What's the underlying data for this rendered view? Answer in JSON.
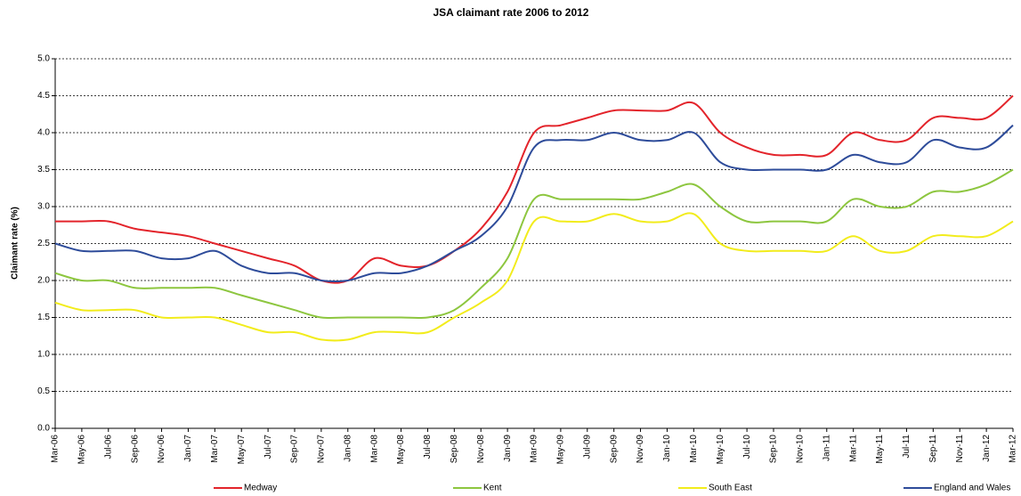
{
  "chart_data": {
    "type": "line",
    "title": "JSA claimant rate 2006 to 2012",
    "y_label": "Claimant rate (%)",
    "categories": [
      "Mar-06",
      "May-06",
      "Jul-06",
      "Sep-06",
      "Nov-06",
      "Jan-07",
      "Mar-07",
      "May-07",
      "Jul-07",
      "Sep-07",
      "Nov-07",
      "Jan-08",
      "Mar-08",
      "May-08",
      "Jul-08",
      "Sep-08",
      "Nov-08",
      "Jan-09",
      "Mar-09",
      "May-09",
      "Jul-09",
      "Sep-09",
      "Nov-09",
      "Jan-10",
      "Mar-10",
      "May-10",
      "Jul-10",
      "Sep-10",
      "Nov-10",
      "Jan-11",
      "Mar-11",
      "May-11",
      "Jul-11",
      "Sep-11",
      "Nov-11",
      "Jan-12",
      "Mar-12"
    ],
    "series": [
      {
        "name": "Medway",
        "color": "#e3242b",
        "values": [
          2.8,
          2.8,
          2.8,
          2.7,
          2.65,
          2.6,
          2.5,
          2.4,
          2.3,
          2.2,
          2.0,
          2.0,
          2.3,
          2.2,
          2.2,
          2.4,
          2.7,
          3.2,
          4.0,
          4.1,
          4.2,
          4.3,
          4.3,
          4.3,
          4.4,
          4.0,
          3.8,
          3.7,
          3.7,
          3.7,
          4.0,
          3.9,
          3.9,
          4.2,
          4.2,
          4.2,
          4.5
        ]
      },
      {
        "name": "Kent",
        "color": "#8dc63f",
        "values": [
          2.1,
          2.0,
          2.0,
          1.9,
          1.9,
          1.9,
          1.9,
          1.8,
          1.7,
          1.6,
          1.5,
          1.5,
          1.5,
          1.5,
          1.5,
          1.6,
          1.9,
          2.3,
          3.1,
          3.1,
          3.1,
          3.1,
          3.1,
          3.2,
          3.3,
          3.0,
          2.8,
          2.8,
          2.8,
          2.8,
          3.1,
          3.0,
          3.0,
          3.2,
          3.2,
          3.3,
          3.5
        ]
      },
      {
        "name": "South East",
        "color": "#f2ec1c",
        "values": [
          1.7,
          1.6,
          1.6,
          1.6,
          1.5,
          1.5,
          1.5,
          1.4,
          1.3,
          1.3,
          1.2,
          1.2,
          1.3,
          1.3,
          1.3,
          1.5,
          1.7,
          2.0,
          2.8,
          2.8,
          2.8,
          2.9,
          2.8,
          2.8,
          2.9,
          2.5,
          2.4,
          2.4,
          2.4,
          2.4,
          2.6,
          2.4,
          2.4,
          2.6,
          2.6,
          2.6,
          2.8
        ]
      },
      {
        "name": "England and Wales",
        "color": "#2e4c9a",
        "values": [
          2.5,
          2.4,
          2.4,
          2.4,
          2.3,
          2.3,
          2.4,
          2.2,
          2.1,
          2.1,
          2.0,
          2.0,
          2.1,
          2.1,
          2.2,
          2.4,
          2.6,
          3.0,
          3.8,
          3.9,
          3.9,
          4.0,
          3.9,
          3.9,
          4.0,
          3.6,
          3.5,
          3.5,
          3.5,
          3.5,
          3.7,
          3.6,
          3.6,
          3.9,
          3.8,
          3.8,
          4.1
        ]
      }
    ],
    "ylim": [
      0,
      5
    ],
    "yticks": [
      {
        "value": 0,
        "label": "0.0"
      },
      0.5,
      {
        "value": 1,
        "label": "1.0"
      },
      1.5,
      {
        "value": 2,
        "label": "2.0"
      },
      2.5,
      {
        "value": 3,
        "label": "3.0"
      },
      3.5,
      {
        "value": 4,
        "label": "4.0"
      },
      4.5,
      {
        "value": 5,
        "label": "5.0"
      }
    ],
    "grid": true,
    "smooth": true,
    "legend": "bottom"
  }
}
